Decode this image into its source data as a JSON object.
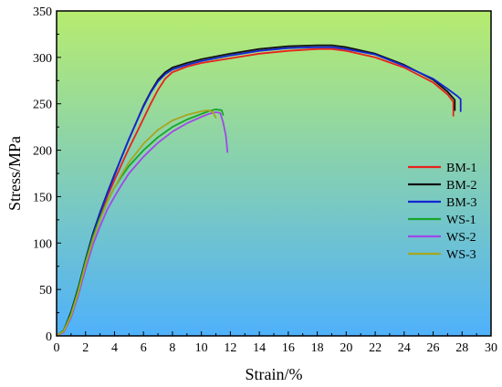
{
  "chart_data": {
    "type": "line",
    "xlabel": "Strain/%",
    "ylabel": "Stress/MPa",
    "xlim": [
      0,
      30
    ],
    "ylim": [
      0,
      350
    ],
    "xticks": [
      0,
      2,
      4,
      6,
      8,
      10,
      12,
      14,
      16,
      18,
      20,
      22,
      24,
      26,
      28,
      30
    ],
    "yticks": [
      0,
      50,
      100,
      150,
      200,
      250,
      300,
      350
    ],
    "grid": false,
    "legend_position": "right",
    "background": {
      "top": "#b7ec6f",
      "bottom": "#4fb1fb"
    },
    "series": [
      {
        "name": "BM-1",
        "color": "#e8211c",
        "points": [
          [
            0,
            0
          ],
          [
            0.5,
            6
          ],
          [
            1,
            25
          ],
          [
            1.5,
            50
          ],
          [
            2,
            80
          ],
          [
            2.5,
            108
          ],
          [
            3,
            130
          ],
          [
            3.5,
            150
          ],
          [
            4,
            168
          ],
          [
            4.5,
            185
          ],
          [
            5,
            202
          ],
          [
            5.5,
            218
          ],
          [
            6,
            234
          ],
          [
            6.5,
            250
          ],
          [
            7,
            265
          ],
          [
            7.5,
            277
          ],
          [
            8,
            284
          ],
          [
            9,
            290
          ],
          [
            10,
            294
          ],
          [
            12,
            299
          ],
          [
            14,
            304
          ],
          [
            16,
            307
          ],
          [
            18,
            309
          ],
          [
            19,
            309
          ],
          [
            20,
            307
          ],
          [
            22,
            300
          ],
          [
            24,
            289
          ],
          [
            26,
            273
          ],
          [
            27,
            260
          ],
          [
            27.4,
            252
          ],
          [
            27.4,
            237
          ]
        ]
      },
      {
        "name": "BM-2",
        "color": "#111111",
        "points": [
          [
            0,
            0
          ],
          [
            0.5,
            6
          ],
          [
            1,
            26
          ],
          [
            1.5,
            52
          ],
          [
            2,
            82
          ],
          [
            2.5,
            110
          ],
          [
            3,
            133
          ],
          [
            3.5,
            154
          ],
          [
            4,
            174
          ],
          [
            4.5,
            193
          ],
          [
            5,
            212
          ],
          [
            5.5,
            230
          ],
          [
            6,
            248
          ],
          [
            6.5,
            263
          ],
          [
            7,
            276
          ],
          [
            7.5,
            284
          ],
          [
            8,
            289
          ],
          [
            9,
            294
          ],
          [
            10,
            298
          ],
          [
            12,
            304
          ],
          [
            14,
            309
          ],
          [
            16,
            312
          ],
          [
            18,
            313
          ],
          [
            19,
            313
          ],
          [
            20,
            311
          ],
          [
            22,
            304
          ],
          [
            24,
            292
          ],
          [
            26,
            276
          ],
          [
            27,
            263
          ],
          [
            27.5,
            254
          ],
          [
            27.5,
            243
          ]
        ]
      },
      {
        "name": "BM-3",
        "color": "#1426d6",
        "points": [
          [
            0,
            0
          ],
          [
            0.5,
            5
          ],
          [
            1,
            24
          ],
          [
            1.5,
            50
          ],
          [
            2,
            80
          ],
          [
            2.5,
            108
          ],
          [
            3,
            132
          ],
          [
            3.5,
            153
          ],
          [
            4,
            173
          ],
          [
            4.5,
            193
          ],
          [
            5,
            212
          ],
          [
            5.5,
            230
          ],
          [
            6,
            247
          ],
          [
            6.5,
            262
          ],
          [
            7,
            274
          ],
          [
            7.5,
            282
          ],
          [
            8,
            287
          ],
          [
            9,
            292
          ],
          [
            10,
            296
          ],
          [
            12,
            302
          ],
          [
            14,
            307
          ],
          [
            16,
            310
          ],
          [
            18,
            311
          ],
          [
            19,
            311
          ],
          [
            20,
            309
          ],
          [
            22,
            303
          ],
          [
            24,
            291
          ],
          [
            26,
            277
          ],
          [
            27,
            266
          ],
          [
            27.7,
            258
          ],
          [
            27.9,
            255
          ],
          [
            27.9,
            242
          ]
        ]
      },
      {
        "name": "WS-1",
        "color": "#16a52b",
        "points": [
          [
            0,
            0
          ],
          [
            0.5,
            6
          ],
          [
            1,
            24
          ],
          [
            1.5,
            50
          ],
          [
            2,
            80
          ],
          [
            2.5,
            106
          ],
          [
            3,
            127
          ],
          [
            3.5,
            145
          ],
          [
            4,
            160
          ],
          [
            4.5,
            172
          ],
          [
            5,
            183
          ],
          [
            6,
            200
          ],
          [
            7,
            214
          ],
          [
            8,
            225
          ],
          [
            9,
            233
          ],
          [
            10,
            239
          ],
          [
            10.5,
            242
          ],
          [
            11,
            244
          ],
          [
            11.4,
            243
          ],
          [
            11.5,
            238
          ]
        ]
      },
      {
        "name": "WS-2",
        "color": "#a048e8",
        "points": [
          [
            0,
            0
          ],
          [
            0.5,
            4
          ],
          [
            1,
            20
          ],
          [
            1.5,
            44
          ],
          [
            2,
            72
          ],
          [
            2.5,
            98
          ],
          [
            3,
            118
          ],
          [
            3.5,
            136
          ],
          [
            4,
            150
          ],
          [
            4.5,
            163
          ],
          [
            5,
            175
          ],
          [
            6,
            193
          ],
          [
            7,
            208
          ],
          [
            8,
            220
          ],
          [
            9,
            229
          ],
          [
            10,
            236
          ],
          [
            10.5,
            239
          ],
          [
            11,
            241
          ],
          [
            11.3,
            240
          ],
          [
            11.5,
            230
          ],
          [
            11.7,
            215
          ],
          [
            11.8,
            198
          ]
        ]
      },
      {
        "name": "WS-3",
        "color": "#a6a61e",
        "points": [
          [
            0,
            0
          ],
          [
            0.5,
            5
          ],
          [
            1,
            22
          ],
          [
            1.5,
            47
          ],
          [
            2,
            77
          ],
          [
            2.5,
            103
          ],
          [
            3,
            125
          ],
          [
            3.5,
            144
          ],
          [
            4,
            160
          ],
          [
            4.5,
            174
          ],
          [
            5,
            187
          ],
          [
            6,
            207
          ],
          [
            7,
            222
          ],
          [
            8,
            232
          ],
          [
            9,
            238
          ],
          [
            10,
            242
          ],
          [
            10.5,
            243
          ],
          [
            10.8,
            241
          ],
          [
            11,
            235
          ]
        ]
      }
    ]
  }
}
